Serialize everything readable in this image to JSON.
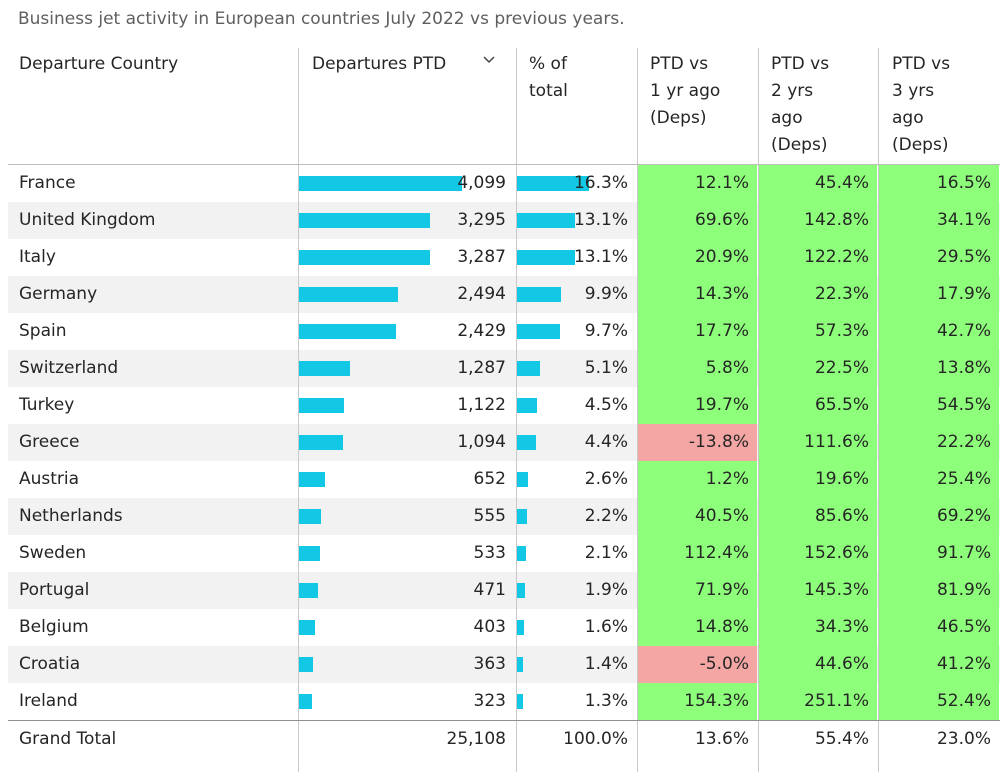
{
  "title": "Business jet activity in European countries July 2022 vs previous years.",
  "headers": {
    "country": "Departure Country",
    "departures": "Departures PTD",
    "pct_total": [
      "% of",
      "total"
    ],
    "vs1": [
      "PTD vs",
      "1 yr ago",
      "(Deps)"
    ],
    "vs2": [
      "PTD vs",
      "2 yrs",
      "ago",
      "(Deps)"
    ],
    "vs3": [
      "PTD vs",
      "3 yrs",
      "ago",
      "(Deps)"
    ],
    "sort_icon": "chevron-down-icon"
  },
  "colors": {
    "bar": "#12c8e4",
    "positive": "#8eff7a",
    "negative": "#f4a6a4"
  },
  "chart_data": {
    "type": "table",
    "title": "Business jet activity in European countries July 2022 vs previous years.",
    "columns": [
      "Departure Country",
      "Departures PTD",
      "% of total",
      "PTD vs 1 yr ago (Deps)",
      "PTD vs 2 yrs ago (Deps)",
      "PTD vs 3 yrs ago (Deps)"
    ],
    "rows": [
      {
        "country": "France",
        "departures": "4,099",
        "departures_value": 4099,
        "pct_total": "16.3%",
        "pct_value": 16.3,
        "vs1": "12.1%",
        "vs1_value": 12.1,
        "vs2": "45.4%",
        "vs3": "16.5%"
      },
      {
        "country": "United Kingdom",
        "departures": "3,295",
        "departures_value": 3295,
        "pct_total": "13.1%",
        "pct_value": 13.1,
        "vs1": "69.6%",
        "vs1_value": 69.6,
        "vs2": "142.8%",
        "vs3": "34.1%"
      },
      {
        "country": "Italy",
        "departures": "3,287",
        "departures_value": 3287,
        "pct_total": "13.1%",
        "pct_value": 13.1,
        "vs1": "20.9%",
        "vs1_value": 20.9,
        "vs2": "122.2%",
        "vs3": "29.5%"
      },
      {
        "country": "Germany",
        "departures": "2,494",
        "departures_value": 2494,
        "pct_total": "9.9%",
        "pct_value": 9.9,
        "vs1": "14.3%",
        "vs1_value": 14.3,
        "vs2": "22.3%",
        "vs3": "17.9%"
      },
      {
        "country": "Spain",
        "departures": "2,429",
        "departures_value": 2429,
        "pct_total": "9.7%",
        "pct_value": 9.7,
        "vs1": "17.7%",
        "vs1_value": 17.7,
        "vs2": "57.3%",
        "vs3": "42.7%"
      },
      {
        "country": "Switzerland",
        "departures": "1,287",
        "departures_value": 1287,
        "pct_total": "5.1%",
        "pct_value": 5.1,
        "vs1": "5.8%",
        "vs1_value": 5.8,
        "vs2": "22.5%",
        "vs3": "13.8%"
      },
      {
        "country": "Turkey",
        "departures": "1,122",
        "departures_value": 1122,
        "pct_total": "4.5%",
        "pct_value": 4.5,
        "vs1": "19.7%",
        "vs1_value": 19.7,
        "vs2": "65.5%",
        "vs3": "54.5%"
      },
      {
        "country": "Greece",
        "departures": "1,094",
        "departures_value": 1094,
        "pct_total": "4.4%",
        "pct_value": 4.4,
        "vs1": "-13.8%",
        "vs1_value": -13.8,
        "vs2": "111.6%",
        "vs3": "22.2%"
      },
      {
        "country": "Austria",
        "departures": "652",
        "departures_value": 652,
        "pct_total": "2.6%",
        "pct_value": 2.6,
        "vs1": "1.2%",
        "vs1_value": 1.2,
        "vs2": "19.6%",
        "vs3": "25.4%"
      },
      {
        "country": "Netherlands",
        "departures": "555",
        "departures_value": 555,
        "pct_total": "2.2%",
        "pct_value": 2.2,
        "vs1": "40.5%",
        "vs1_value": 40.5,
        "vs2": "85.6%",
        "vs3": "69.2%"
      },
      {
        "country": "Sweden",
        "departures": "533",
        "departures_value": 533,
        "pct_total": "2.1%",
        "pct_value": 2.1,
        "vs1": "112.4%",
        "vs1_value": 112.4,
        "vs2": "152.6%",
        "vs3": "91.7%"
      },
      {
        "country": "Portugal",
        "departures": "471",
        "departures_value": 471,
        "pct_total": "1.9%",
        "pct_value": 1.9,
        "vs1": "71.9%",
        "vs1_value": 71.9,
        "vs2": "145.3%",
        "vs3": "81.9%"
      },
      {
        "country": "Belgium",
        "departures": "403",
        "departures_value": 403,
        "pct_total": "1.6%",
        "pct_value": 1.6,
        "vs1": "14.8%",
        "vs1_value": 14.8,
        "vs2": "34.3%",
        "vs3": "46.5%"
      },
      {
        "country": "Croatia",
        "departures": "363",
        "departures_value": 363,
        "pct_total": "1.4%",
        "pct_value": 1.4,
        "vs1": "-5.0%",
        "vs1_value": -5.0,
        "vs2": "44.6%",
        "vs3": "41.2%"
      },
      {
        "country": "Ireland",
        "departures": "323",
        "departures_value": 323,
        "pct_total": "1.3%",
        "pct_value": 1.3,
        "vs1": "154.3%",
        "vs1_value": 154.3,
        "vs2": "251.1%",
        "vs3": "52.4%"
      }
    ],
    "grand_total": {
      "country": "Grand Total",
      "departures": "25,108",
      "pct_total": "100.0%",
      "vs1": "13.6%",
      "vs2": "55.4%",
      "vs3": "23.0%"
    }
  }
}
